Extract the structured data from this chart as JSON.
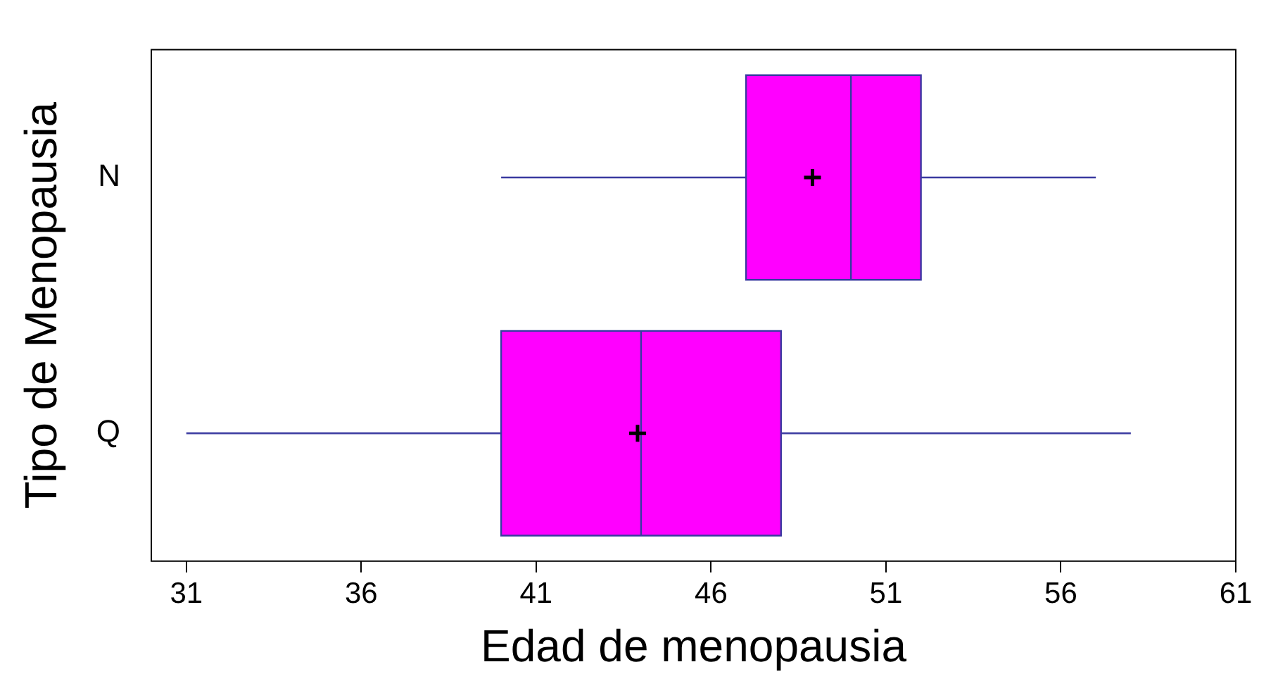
{
  "chart_data": {
    "type": "box",
    "orientation": "horizontal",
    "xlabel": "Edad de menopausia",
    "ylabel": "Tipo de Menopausia",
    "categories": [
      "N",
      "Q"
    ],
    "series": [
      {
        "color": "#ff00ff",
        "boxes": [
          {
            "low": 40,
            "q1": 47,
            "median": 50,
            "q3": 52,
            "high": 57,
            "mean": 48.9
          },
          {
            "low": 31,
            "q1": 40,
            "median": 44,
            "q3": 48,
            "high": 58,
            "mean": 43.9
          }
        ]
      }
    ],
    "xlim": [
      30,
      61
    ],
    "xticks": [
      31,
      36,
      41,
      46,
      51,
      56,
      61
    ],
    "grid": false,
    "legend": false,
    "marker": "cross"
  }
}
